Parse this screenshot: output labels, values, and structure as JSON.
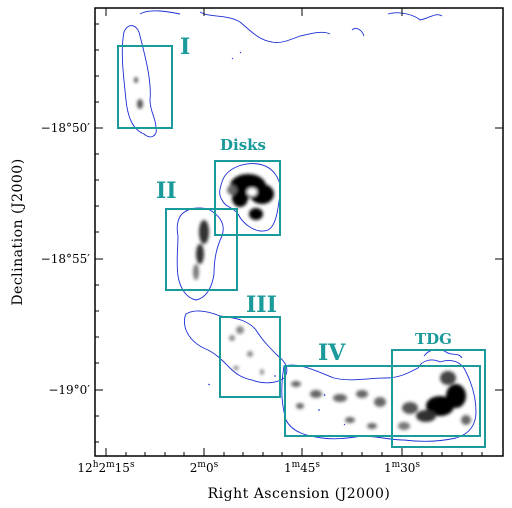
{
  "axes": {
    "xlabel": "Right Ascension (J2000)",
    "ylabel": "Declination (J2000)",
    "x_ticks": [
      {
        "main": "12",
        "h": "h",
        "m_val": "2",
        "m": "m",
        "s_val": "15",
        "s": "s"
      },
      {
        "main": "2",
        "m": "m",
        "s_val": "0",
        "s": "s"
      },
      {
        "main": "1",
        "m": "m",
        "s_val": "45",
        "s": "s"
      },
      {
        "main": "1",
        "m": "m",
        "s_val": "30",
        "s": "s"
      }
    ],
    "y_ticks": [
      "−18°50′",
      "−18°55′",
      "−19°0′"
    ]
  },
  "regions": [
    {
      "id": "I",
      "label": "I"
    },
    {
      "id": "Disks",
      "label": "Disks"
    },
    {
      "id": "II",
      "label": "II"
    },
    {
      "id": "III",
      "label": "III"
    },
    {
      "id": "IV",
      "label": "IV"
    },
    {
      "id": "TDG",
      "label": "TDG"
    }
  ],
  "colors": {
    "box": "#1a9a9a",
    "contour": "#1b2fd6",
    "emission": "#000000"
  }
}
